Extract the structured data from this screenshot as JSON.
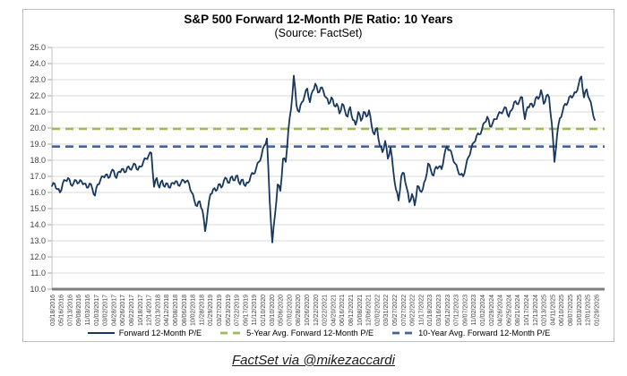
{
  "chart_data": {
    "type": "line",
    "title": "S&P 500 Forward 12-Month P/E Ratio: 10 Years",
    "subtitle": "(Source: FactSet)",
    "ylim": [
      10.0,
      25.0
    ],
    "ytick_step": 1.0,
    "grid": "horizontal",
    "legend_position": "bottom",
    "xtick_labels": [
      "03/18/2016",
      "05/16/2016",
      "07/13/2016",
      "09/08/2016",
      "11/03/2016",
      "01/03/2017",
      "03/02/2017",
      "04/28/2017",
      "06/26/2017",
      "08/22/2017",
      "10/18/2017",
      "12/14/2017",
      "02/13/2018",
      "04/12/2018",
      "06/08/2018",
      "08/06/2018",
      "10/02/2018",
      "11/28/2018",
      "01/29/2019",
      "03/27/2019",
      "05/23/2019",
      "07/22/2019",
      "09/17/2019",
      "11/12/2019",
      "01/10/2020",
      "03/10/2020",
      "05/06/2020",
      "07/02/2020",
      "08/28/2020",
      "10/26/2020",
      "12/22/2020",
      "02/22/2021",
      "04/20/2021",
      "06/16/2021",
      "08/12/2021",
      "10/08/2021",
      "12/06/2021",
      "02/02/2022",
      "03/31/2022",
      "05/27/2022",
      "07/27/2022",
      "09/22/2022",
      "11/17/2022",
      "01/18/2023",
      "03/16/2023",
      "05/12/2023",
      "07/12/2023",
      "09/07/2023",
      "11/02/2023",
      "01/02/2024",
      "02/29/2024",
      "04/26/2024",
      "06/25/2024",
      "08/21/2024",
      "10/17/2024",
      "12/13/2024",
      "02/13/2025",
      "04/11/2025",
      "06/10/2025",
      "08/07/2025",
      "10/03/2025",
      "12/01/2025",
      "01/29/2026"
    ],
    "series": {
      "main": {
        "name": "Forward 12-Month P/E",
        "color": "#17375D",
        "style": "solid",
        "x_start": "03/18/2016",
        "x_end": "01/29/2026",
        "sampling": "evenly-spaced",
        "values": [
          16.4,
          16.55,
          16.2,
          16.0,
          16.55,
          16.75,
          16.9,
          16.5,
          16.55,
          16.75,
          16.6,
          16.7,
          16.55,
          16.3,
          16.55,
          16.25,
          15.8,
          16.5,
          16.75,
          17.0,
          17.1,
          16.9,
          17.25,
          17.35,
          16.9,
          17.3,
          17.45,
          17.25,
          17.55,
          17.45,
          17.6,
          17.75,
          17.4,
          17.6,
          17.9,
          18.1,
          18.3,
          18.45,
          16.35,
          16.9,
          16.3,
          16.75,
          16.35,
          16.55,
          16.3,
          16.6,
          16.7,
          16.45,
          16.6,
          16.75,
          16.7,
          16.55,
          16.0,
          15.5,
          15.15,
          15.45,
          14.9,
          13.6,
          14.9,
          15.9,
          16.2,
          16.1,
          16.5,
          16.3,
          16.75,
          16.85,
          16.6,
          17.0,
          16.75,
          17.05,
          16.5,
          16.8,
          16.4,
          16.6,
          17.05,
          17.15,
          17.5,
          17.9,
          18.3,
          18.9,
          19.35,
          15.6,
          12.9,
          14.6,
          16.5,
          16.1,
          18.1,
          17.9,
          19.9,
          21.2,
          23.25,
          21.4,
          21.0,
          21.6,
          22.0,
          22.45,
          21.6,
          22.3,
          22.75,
          22.2,
          22.5,
          22.3,
          21.9,
          21.5,
          21.9,
          21.4,
          21.5,
          20.9,
          21.5,
          21.1,
          20.7,
          21.3,
          20.5,
          20.2,
          21.0,
          20.45,
          21.0,
          20.7,
          21.1,
          20.1,
          19.6,
          20.0,
          18.9,
          18.5,
          19.2,
          18.1,
          18.8,
          17.4,
          16.2,
          15.5,
          17.0,
          17.2,
          16.3,
          15.4,
          15.9,
          15.2,
          16.4,
          16.1,
          16.2,
          16.8,
          17.8,
          17.4,
          17.05,
          17.6,
          17.6,
          17.45,
          18.3,
          18.85,
          18.65,
          18.25,
          17.8,
          17.4,
          17.1,
          17.0,
          17.6,
          18.2,
          18.7,
          19.1,
          19.5,
          19.6,
          19.9,
          20.35,
          20.7,
          20.1,
          20.3,
          20.55,
          20.8,
          20.95,
          21.1,
          21.25,
          20.7,
          21.1,
          21.6,
          21.5,
          21.7,
          21.9,
          20.55,
          21.3,
          21.5,
          21.3,
          21.85,
          21.8,
          22.35,
          21.5,
          22.0,
          21.9,
          20.3,
          17.9,
          19.6,
          20.6,
          21.0,
          21.5,
          21.6,
          22.0,
          22.0,
          22.2,
          22.7,
          23.2,
          21.9,
          22.4,
          21.8,
          21.2,
          20.5
        ]
      },
      "avg5": {
        "name": "5-Year Avg. Forward 12-Month P/E",
        "color": "#9BBB59",
        "style": "dashed",
        "value": 19.95
      },
      "avg10": {
        "name": "10-Year Avg. Forward 12-Month P/E",
        "color": "#44639A",
        "style": "dashed",
        "value": 18.85
      }
    },
    "footer": "FactSet via @mikezaccardi"
  }
}
